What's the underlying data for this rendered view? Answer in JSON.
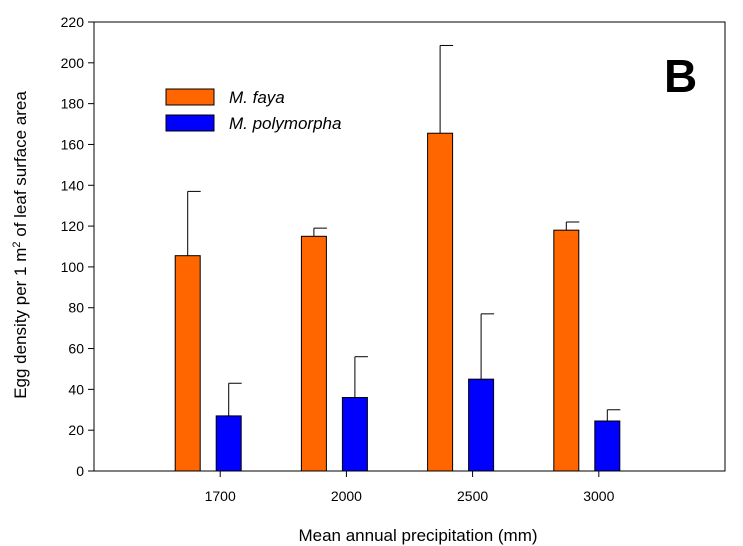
{
  "chart_data": {
    "type": "bar",
    "panel_label": "B",
    "title": "",
    "xlabel": "Mean annual precipitation (mm)",
    "ylabel": "Egg density per 1 m² of leaf surface area",
    "categories": [
      "1700",
      "2000",
      "2500",
      "3000"
    ],
    "ylim": [
      0,
      220
    ],
    "yticks": [
      0,
      20,
      40,
      60,
      80,
      100,
      120,
      140,
      160,
      180,
      200,
      220
    ],
    "grid": false,
    "legend_position": "upper-left",
    "series": [
      {
        "name": "M. faya",
        "color": "#ff6600",
        "values": [
          105.5,
          115,
          165.5,
          118
        ],
        "errors": [
          31.5,
          4,
          43,
          4
        ]
      },
      {
        "name": "M. polymorpha",
        "color": "#0000ff",
        "values": [
          27,
          36,
          45,
          24.5
        ],
        "errors": [
          16,
          20,
          32,
          5.5
        ]
      }
    ]
  }
}
